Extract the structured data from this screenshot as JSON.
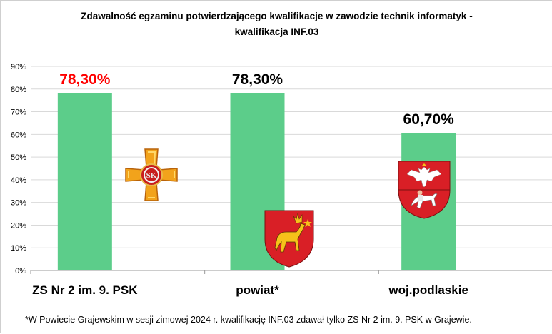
{
  "chart_data": {
    "type": "bar",
    "title": "Zdawalność egzaminu potwierdzającego kwalifikacje w zawodzie technik informatyk - kwalifikacja INF.03",
    "title_lines": [
      "Zdawalność egzaminu potwierdzającego kwalifikacje w zawodzie technik informatyk -",
      "kwalifikacja INF.03"
    ],
    "categories": [
      "ZS Nr 2 im. 9. PSK",
      "powiat*",
      "woj.podlaskie"
    ],
    "values": [
      78.3,
      78.3,
      60.7
    ],
    "data_labels": [
      "78,30%",
      "78,30%",
      "60,70%"
    ],
    "data_label_colors": [
      "#ff0000",
      "#000000",
      "#000000"
    ],
    "bar_color": "#5ccd8a",
    "ylim": [
      0,
      90
    ],
    "yticks": [
      "0%",
      "10%",
      "20%",
      "30%",
      "40%",
      "50%",
      "60%",
      "70%",
      "80%",
      "90%"
    ],
    "grid": true,
    "xlabel": "",
    "ylabel": ""
  },
  "footnote": "*W Powiecie Grajewskim w sesji zimowej 2024 r. kwalifikację INF.03 zdawał tylko ZS Nr 2 im. 9. PSK w Grajewie.",
  "icons": [
    "cross-medal-icon",
    "moose-coat-of-arms-icon",
    "eagle-coat-of-arms-icon"
  ]
}
